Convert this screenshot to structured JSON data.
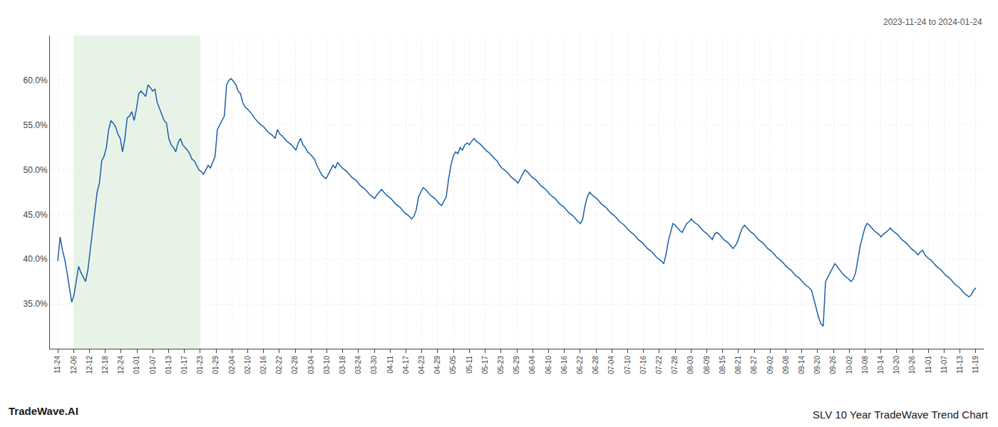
{
  "chart_data": {
    "type": "line",
    "title": "SLV 10 Year TradeWave Trend Chart",
    "subtitle": "2023-11-24 to 2024-01-24",
    "annotations": [
      "TradeWave.AI"
    ],
    "color": "#1a5fa8",
    "grid": true,
    "highlight": {
      "from": "12-06",
      "to": "01-23",
      "color": "#d6ead6"
    },
    "xlim": [
      -3.4224,
      400.4224
    ],
    "xticks": [
      {
        "value": 0,
        "label": "11-24"
      },
      {
        "value": 6.8448,
        "label": "12-06"
      },
      {
        "value": 13.6897,
        "label": "12-12"
      },
      {
        "value": 20.5345,
        "label": "12-18"
      },
      {
        "value": 27.3793,
        "label": "12-24"
      },
      {
        "value": 34.2241,
        "label": "01-01"
      },
      {
        "value": 41.069,
        "label": "01-07"
      },
      {
        "value": 47.9138,
        "label": "01-13"
      },
      {
        "value": 54.7586,
        "label": "01-17"
      },
      {
        "value": 61.6034,
        "label": "01-23"
      },
      {
        "value": 68.4483,
        "label": "01-29"
      },
      {
        "value": 75.2931,
        "label": "02-04"
      },
      {
        "value": 82.1379,
        "label": "02-10"
      },
      {
        "value": 88.9828,
        "label": "02-16"
      },
      {
        "value": 95.8276,
        "label": "02-22"
      },
      {
        "value": 102.6724,
        "label": "02-28"
      },
      {
        "value": 109.5172,
        "label": "03-04"
      },
      {
        "value": 116.3621,
        "label": "03-10"
      },
      {
        "value": 123.2069,
        "label": "03-18"
      },
      {
        "value": 130.0517,
        "label": "03-24"
      },
      {
        "value": 136.8966,
        "label": "03-30"
      },
      {
        "value": 143.7414,
        "label": "04-11"
      },
      {
        "value": 150.5862,
        "label": "04-17"
      },
      {
        "value": 157.431,
        "label": "04-23"
      },
      {
        "value": 164.2759,
        "label": "04-29"
      },
      {
        "value": 171.1207,
        "label": "05-05"
      },
      {
        "value": 177.9655,
        "label": "05-11"
      },
      {
        "value": 184.8103,
        "label": "05-17"
      },
      {
        "value": 191.6552,
        "label": "05-23"
      },
      {
        "value": 198.5,
        "label": "05-29"
      },
      {
        "value": 205.3448,
        "label": "06-04"
      },
      {
        "value": 212.1897,
        "label": "06-10"
      },
      {
        "value": 219.0345,
        "label": "06-16"
      },
      {
        "value": 225.8793,
        "label": "06-22"
      },
      {
        "value": 232.7241,
        "label": "06-28"
      },
      {
        "value": 239.569,
        "label": "07-04"
      },
      {
        "value": 246.4138,
        "label": "07-10"
      },
      {
        "value": 253.2586,
        "label": "07-16"
      },
      {
        "value": 260.1034,
        "label": "07-22"
      },
      {
        "value": 266.9483,
        "label": "07-28"
      },
      {
        "value": 273.7931,
        "label": "08-03"
      },
      {
        "value": 280.6379,
        "label": "08-09"
      },
      {
        "value": 287.4828,
        "label": "08-15"
      },
      {
        "value": 294.3276,
        "label": "08-21"
      },
      {
        "value": 301.1724,
        "label": "08-27"
      },
      {
        "value": 308.0172,
        "label": "09-02"
      },
      {
        "value": 314.8621,
        "label": "09-08"
      },
      {
        "value": 321.7069,
        "label": "09-14"
      },
      {
        "value": 328.5517,
        "label": "09-20"
      },
      {
        "value": 335.3966,
        "label": "09-26"
      },
      {
        "value": 342.2414,
        "label": "10-02"
      },
      {
        "value": 349.0862,
        "label": "10-08"
      },
      {
        "value": 355.931,
        "label": "10-14"
      },
      {
        "value": 362.7759,
        "label": "10-20"
      },
      {
        "value": 369.6207,
        "label": "10-26"
      },
      {
        "value": 376.4655,
        "label": "11-01"
      },
      {
        "value": 383.3103,
        "label": "11-07"
      },
      {
        "value": 390.1552,
        "label": "11-13"
      },
      {
        "value": 397,
        "label": "11-19"
      }
    ],
    "ylim": [
      30.0,
      65.0
    ],
    "yticks": [
      {
        "value": 35.0,
        "label": "35.0%"
      },
      {
        "value": 40.0,
        "label": "40.0%"
      },
      {
        "value": 45.0,
        "label": "45.0%"
      },
      {
        "value": 50.0,
        "label": "50.0%"
      },
      {
        "value": 55.0,
        "label": "55.0%"
      },
      {
        "value": 60.0,
        "label": "60.0%"
      }
    ],
    "values": [
      39.8,
      42.5,
      41.0,
      40.0,
      38.5,
      37.0,
      35.2,
      36.0,
      37.5,
      39.2,
      38.5,
      38.0,
      37.5,
      38.8,
      41.0,
      43.5,
      45.2,
      47.5,
      48.5,
      51.0,
      51.5,
      52.5,
      54.5,
      55.5,
      55.2,
      54.8,
      54.0,
      53.5,
      52.0,
      53.5,
      55.8,
      56.0,
      56.5,
      55.5,
      56.8,
      58.5,
      58.8,
      58.5,
      58.2,
      59.5,
      59.2,
      58.8,
      59.0,
      57.5,
      56.8,
      56.2,
      55.5,
      55.2,
      53.5,
      52.8,
      52.5,
      52.0,
      53.0,
      53.5,
      52.8,
      52.5,
      52.2,
      51.8,
      51.2,
      51.0,
      50.5,
      50.0,
      49.8,
      49.5,
      50.0,
      50.5,
      50.2,
      50.8,
      51.5,
      54.5,
      55.0,
      55.5,
      56.0,
      59.5,
      60.0,
      60.2,
      59.8,
      59.5,
      58.8,
      58.5,
      57.5,
      57.0,
      56.8,
      56.5,
      56.2,
      55.8,
      55.5,
      55.2,
      55.0,
      54.8,
      54.5,
      54.2,
      54.0,
      53.8,
      53.5,
      54.5,
      54.0,
      53.8,
      53.5,
      53.2,
      53.0,
      52.8,
      52.5,
      52.2,
      53.0,
      53.5,
      52.8,
      52.5,
      52.0,
      51.8,
      51.5,
      51.2,
      50.5,
      50.0,
      49.5,
      49.2,
      49.0,
      49.5,
      50.0,
      50.5,
      50.2,
      50.8,
      50.5,
      50.2,
      50.0,
      49.8,
      49.5,
      49.2,
      49.0,
      48.8,
      48.5,
      48.2,
      48.0,
      47.8,
      47.5,
      47.2,
      47.0,
      46.8,
      47.2,
      47.5,
      47.8,
      47.5,
      47.2,
      47.0,
      46.8,
      46.5,
      46.2,
      46.0,
      45.8,
      45.5,
      45.2,
      45.0,
      44.8,
      44.5,
      44.8,
      45.5,
      47.0,
      47.5,
      48.0,
      47.8,
      47.5,
      47.2,
      47.0,
      46.8,
      46.5,
      46.2,
      46.0,
      46.5,
      47.0,
      49.0,
      50.5,
      51.5,
      52.0,
      51.8,
      52.5,
      52.2,
      52.8,
      53.0,
      52.8,
      53.2,
      53.5,
      53.2,
      53.0,
      52.8,
      52.5,
      52.2,
      52.0,
      51.8,
      51.5,
      51.2,
      51.0,
      50.5,
      50.2,
      50.0,
      49.8,
      49.5,
      49.2,
      49.0,
      48.8,
      48.5,
      49.0,
      49.5,
      50.0,
      49.8,
      49.5,
      49.2,
      49.0,
      48.8,
      48.5,
      48.2,
      48.0,
      47.8,
      47.5,
      47.2,
      47.0,
      46.8,
      46.5,
      46.2,
      46.0,
      45.8,
      45.5,
      45.2,
      45.0,
      44.8,
      44.5,
      44.2,
      44.0,
      44.5,
      46.0,
      47.0,
      47.5,
      47.2,
      47.0,
      46.8,
      46.5,
      46.2,
      46.0,
      45.8,
      45.5,
      45.2,
      45.0,
      44.8,
      44.5,
      44.2,
      44.0,
      43.8,
      43.5,
      43.2,
      43.0,
      42.8,
      42.5,
      42.2,
      42.0,
      41.8,
      41.5,
      41.2,
      41.0,
      40.8,
      40.5,
      40.2,
      40.0,
      39.8,
      39.5,
      40.5,
      42.0,
      43.0,
      44.0,
      43.8,
      43.5,
      43.2,
      43.0,
      43.5,
      44.0,
      44.2,
      44.5,
      44.2,
      44.0,
      43.8,
      43.5,
      43.2,
      43.0,
      42.8,
      42.5,
      42.2,
      42.8,
      43.0,
      42.8,
      42.5,
      42.2,
      42.0,
      41.8,
      41.5,
      41.2,
      41.5,
      42.0,
      42.8,
      43.5,
      43.8,
      43.5,
      43.2,
      43.0,
      42.8,
      42.5,
      42.2,
      42.0,
      41.8,
      41.5,
      41.2,
      41.0,
      40.8,
      40.5,
      40.2,
      40.0,
      39.8,
      39.5,
      39.2,
      39.0,
      38.8,
      38.5,
      38.2,
      38.0,
      37.8,
      37.5,
      37.2,
      37.0,
      36.8,
      36.5,
      35.5,
      34.5,
      33.5,
      32.8,
      32.5,
      37.5,
      38.0,
      38.5,
      39.0,
      39.5,
      39.2,
      38.8,
      38.5,
      38.2,
      38.0,
      37.8,
      37.5,
      37.8,
      38.5,
      40.0,
      41.5,
      42.5,
      43.5,
      44.0,
      43.8,
      43.5,
      43.2,
      43.0,
      42.8,
      42.5,
      42.8,
      43.0,
      43.2,
      43.5,
      43.2,
      43.0,
      42.8,
      42.5,
      42.2,
      42.0,
      41.8,
      41.5,
      41.2,
      41.0,
      40.8,
      40.5,
      40.8,
      41.0,
      40.5,
      40.2,
      40.0,
      39.8,
      39.5,
      39.2,
      39.0,
      38.8,
      38.5,
      38.2,
      38.0,
      37.8,
      37.5,
      37.2,
      37.0,
      36.8,
      36.5,
      36.2,
      36.0,
      35.8,
      36.0,
      36.5,
      36.8
    ]
  }
}
